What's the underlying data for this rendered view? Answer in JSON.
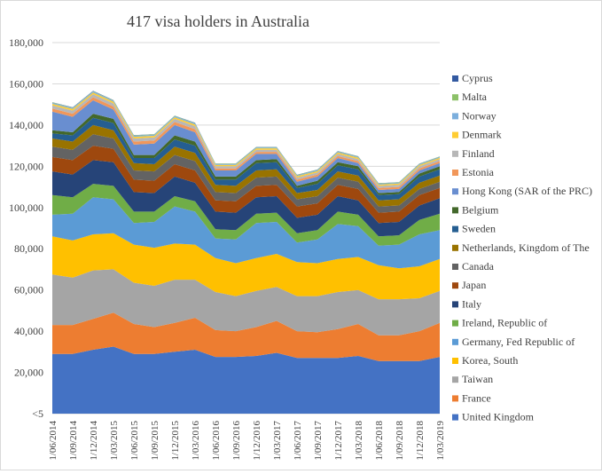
{
  "chart_data": {
    "type": "area",
    "stacked": true,
    "title": "417 visa holders in Australia",
    "xlabel": "",
    "ylabel": "",
    "ylim": [
      0,
      180000
    ],
    "y_ticks": [
      {
        "value": 0,
        "label": "<5"
      },
      {
        "value": 20000,
        "label": "20,000"
      },
      {
        "value": 40000,
        "label": "40,000"
      },
      {
        "value": 60000,
        "label": "60,000"
      },
      {
        "value": 80000,
        "label": "80,000"
      },
      {
        "value": 100000,
        "label": "100,000"
      },
      {
        "value": 120000,
        "label": "120,000"
      },
      {
        "value": 140000,
        "label": "140,000"
      },
      {
        "value": 160000,
        "label": "160,000"
      },
      {
        "value": 180000,
        "label": "180,000"
      }
    ],
    "grid": true,
    "legend_position": "right",
    "categories": [
      "1/06/2014",
      "1/09/2014",
      "1/12/2014",
      "1/03/2015",
      "1/06/2015",
      "1/09/2015",
      "1/12/2015",
      "1/03/2016",
      "1/06/2016",
      "1/09/2016",
      "1/12/2016",
      "1/03/2017",
      "1/06/2017",
      "1/09/2017",
      "1/12/2017",
      "1/03/2018",
      "1/06/2018",
      "1/09/2018",
      "1/12/2018",
      "1/03/2019"
    ],
    "series": [
      {
        "name": "United Kingdom",
        "color": "#4472c4",
        "values": [
          29000,
          29000,
          31000,
          32500,
          29000,
          29000,
          30000,
          31000,
          27500,
          27500,
          28000,
          29500,
          27000,
          27000,
          27000,
          28000,
          25500,
          25500,
          25500,
          27500
        ]
      },
      {
        "name": "France",
        "color": "#ed7d31",
        "values": [
          14000,
          14000,
          15000,
          16500,
          14500,
          13000,
          14000,
          15500,
          13000,
          12500,
          14000,
          15500,
          13000,
          12500,
          14000,
          15500,
          12500,
          12500,
          14500,
          16500
        ]
      },
      {
        "name": "Taiwan",
        "color": "#a5a5a5",
        "values": [
          24500,
          23000,
          23500,
          21000,
          20000,
          20000,
          21000,
          18500,
          18500,
          17000,
          17500,
          16500,
          17000,
          17500,
          18000,
          16500,
          17500,
          17500,
          16000,
          15500
        ]
      },
      {
        "name": "Korea, South",
        "color": "#ffc000",
        "values": [
          18500,
          18000,
          17500,
          17500,
          18500,
          18500,
          17500,
          17000,
          16500,
          16000,
          16000,
          16000,
          16500,
          16000,
          16000,
          16000,
          16500,
          15000,
          15500,
          15500
        ]
      },
      {
        "name": "Germany, Fed Republic of",
        "color": "#5b9bd5",
        "values": [
          10500,
          13000,
          18000,
          16500,
          10500,
          12500,
          18000,
          16000,
          9500,
          11500,
          17000,
          15500,
          9500,
          11500,
          17000,
          15000,
          9500,
          11500,
          15500,
          14000
        ]
      },
      {
        "name": "Ireland, Republic of",
        "color": "#70ad47",
        "values": [
          9500,
          8000,
          6500,
          6500,
          5500,
          5000,
          5000,
          5000,
          4500,
          4500,
          4500,
          4500,
          4500,
          4500,
          6000,
          5500,
          4500,
          4500,
          7000,
          8000
        ]
      },
      {
        "name": "Italy",
        "color": "#264478",
        "values": [
          11500,
          11000,
          11500,
          11500,
          9500,
          9000,
          9500,
          9000,
          8500,
          8500,
          8000,
          8000,
          7500,
          7500,
          7500,
          7000,
          6500,
          6500,
          7000,
          7500
        ]
      },
      {
        "name": "Japan",
        "color": "#9e480e",
        "values": [
          7000,
          7000,
          7000,
          6500,
          6000,
          6000,
          6000,
          6000,
          5500,
          5500,
          5500,
          5500,
          5500,
          5500,
          5500,
          5500,
          5000,
          5000,
          5000,
          5000
        ]
      },
      {
        "name": "Canada",
        "color": "#636363",
        "values": [
          5000,
          5000,
          5500,
          5000,
          4500,
          4500,
          4500,
          4500,
          4000,
          4000,
          4000,
          4000,
          3500,
          3500,
          3500,
          3500,
          3000,
          3000,
          3000,
          3000
        ]
      },
      {
        "name": "Netherlands, Kingdom of The",
        "color": "#997300",
        "values": [
          4000,
          4000,
          4500,
          4000,
          3500,
          3500,
          4000,
          4000,
          3500,
          3500,
          3500,
          3500,
          3000,
          3000,
          3000,
          3000,
          3000,
          3000,
          3000,
          3000
        ]
      },
      {
        "name": "Sweden",
        "color": "#255e91",
        "values": [
          2500,
          3000,
          3500,
          3500,
          2500,
          3000,
          3500,
          3500,
          2500,
          3000,
          3500,
          3500,
          2500,
          3000,
          3000,
          3000,
          2500,
          2500,
          3000,
          3000
        ]
      },
      {
        "name": "Belgium",
        "color": "#43682b",
        "values": [
          1500,
          1500,
          2000,
          2000,
          1500,
          1500,
          2000,
          2000,
          1500,
          1500,
          1500,
          1500,
          1000,
          1500,
          1500,
          1500,
          1000,
          1000,
          1500,
          1500
        ]
      },
      {
        "name": "Hong Kong (SAR of the PRC)",
        "color": "#698ed0",
        "values": [
          9000,
          7500,
          6500,
          4500,
          5000,
          5500,
          5000,
          4500,
          3000,
          3000,
          3000,
          2500,
          2000,
          2000,
          2000,
          1500,
          1500,
          1500,
          1500,
          1500
        ]
      },
      {
        "name": "Estonia",
        "color": "#f1975a",
        "values": [
          1500,
          1500,
          1500,
          1500,
          1500,
          1500,
          1500,
          1500,
          1000,
          1000,
          1000,
          1000,
          1000,
          1000,
          1000,
          1000,
          1000,
          1000,
          1000,
          1000
        ]
      },
      {
        "name": "Finland",
        "color": "#b7b7b7",
        "values": [
          1500,
          1500,
          1500,
          1500,
          1500,
          1500,
          1500,
          1500,
          1000,
          1000,
          1000,
          1000,
          1000,
          1000,
          1000,
          1000,
          1000,
          1000,
          1000,
          1000
        ]
      },
      {
        "name": "Denmark",
        "color": "#ffcd33",
        "values": [
          800,
          800,
          800,
          800,
          800,
          800,
          800,
          800,
          700,
          700,
          700,
          700,
          700,
          700,
          700,
          700,
          600,
          600,
          600,
          600
        ]
      },
      {
        "name": "Norway",
        "color": "#7cafdd",
        "values": [
          500,
          500,
          500,
          500,
          500,
          500,
          500,
          500,
          400,
          400,
          400,
          400,
          400,
          400,
          400,
          400,
          400,
          400,
          400,
          400
        ]
      },
      {
        "name": "Malta",
        "color": "#8cc168",
        "values": [
          200,
          200,
          200,
          200,
          200,
          200,
          200,
          200,
          200,
          200,
          200,
          200,
          200,
          200,
          200,
          200,
          200,
          200,
          200,
          200
        ]
      },
      {
        "name": "Cyprus",
        "color": "#335aa1",
        "values": [
          100,
          100,
          100,
          100,
          100,
          100,
          100,
          100,
          100,
          100,
          100,
          100,
          100,
          100,
          100,
          100,
          100,
          100,
          100,
          100
        ]
      }
    ]
  }
}
